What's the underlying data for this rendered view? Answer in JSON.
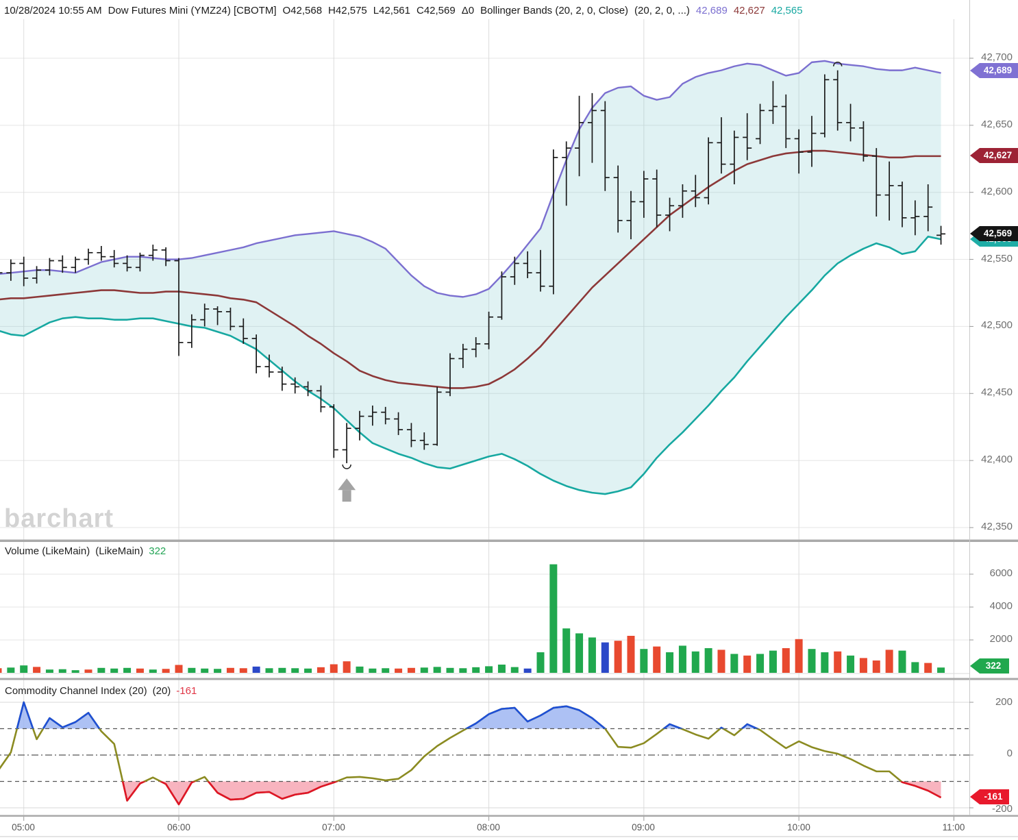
{
  "header": {
    "datetime": "10/28/2024 10:55 AM",
    "symbol": "Dow Futures Mini (YMZ24) [CBOTM]",
    "open": "O42,568",
    "high": "H42,575",
    "low": "L42,561",
    "close": "C42,569",
    "change": "Δ0",
    "study_label": "Bollinger Bands (20, 2, 0, Close)",
    "study_params": "(20, 2, 0, ...)",
    "bb_upper_value": "42,689",
    "bb_middle_value": "42,627",
    "bb_lower_value": "42,565"
  },
  "watermark": "barchart",
  "price_axis": {
    "labels": [
      "42,700",
      "42,650",
      "42,600",
      "42,550",
      "42,500",
      "42,450",
      "42,400",
      "42,350"
    ],
    "badge_upper": "42,689",
    "badge_middle": "42,627",
    "badge_last": "42,569",
    "badge_lower": "42,565"
  },
  "volume_panel": {
    "title": "Volume (LikeMain)",
    "title2": "(LikeMain)",
    "value": "322",
    "axis": [
      "6000",
      "4000",
      "2000"
    ],
    "badge": "322"
  },
  "cci_panel": {
    "title": "Commodity Channel Index (20)",
    "title2": "(20)",
    "value": "-161",
    "axis": [
      "200",
      "0",
      "-200"
    ],
    "badge": "-161"
  },
  "time_axis": [
    "05:00",
    "06:00",
    "07:00",
    "08:00",
    "09:00",
    "10:00",
    "11:00"
  ],
  "colors": {
    "bb_upper": "#7b6fd0",
    "bb_middle": "#8c3838",
    "bb_lower": "#17a8a1",
    "band_fill": "#8ed1d5",
    "volume_up": "#21a84e",
    "volume_down": "#e8492f",
    "volume_neutral": "#2b48c8",
    "cci_line": "#8b8b21",
    "cci_overbought_line": "#1d4fd7",
    "cci_oversold_line": "#e01427",
    "cci_overbought_fill": "#9fb6f2",
    "cci_oversold_fill": "#f7acb8",
    "badge_black": "#151515",
    "badge_purple": "#7f71d3",
    "badge_maroon": "#9d2235",
    "badge_teal": "#1fada6",
    "badge_green": "#21a84e",
    "badge_red": "#e8192c"
  },
  "chart_data": [
    {
      "type": "ohlc",
      "name": "Dow Futures Mini (YMZ24) 5-minute bars with Bollinger Bands (20,2)",
      "ylim": [
        42350,
        42700
      ],
      "yticks": [
        42700,
        42650,
        42600,
        42550,
        42500,
        42450,
        42400,
        42350
      ],
      "x": [
        "04:50",
        "04:55",
        "05:00",
        "05:05",
        "05:10",
        "05:15",
        "05:20",
        "05:25",
        "05:30",
        "05:35",
        "05:40",
        "05:45",
        "05:50",
        "05:55",
        "06:00",
        "06:05",
        "06:10",
        "06:15",
        "06:20",
        "06:25",
        "06:30",
        "06:35",
        "06:40",
        "06:45",
        "06:50",
        "06:55",
        "07:00",
        "07:05",
        "07:10",
        "07:15",
        "07:20",
        "07:25",
        "07:30",
        "07:35",
        "07:40",
        "07:45",
        "07:50",
        "07:55",
        "08:00",
        "08:05",
        "08:10",
        "08:15",
        "08:20",
        "08:25",
        "08:30",
        "08:35",
        "08:40",
        "08:45",
        "08:50",
        "08:55",
        "09:00",
        "09:05",
        "09:10",
        "09:15",
        "09:20",
        "09:25",
        "09:30",
        "09:35",
        "09:40",
        "09:45",
        "09:50",
        "09:55",
        "10:00",
        "10:05",
        "10:10",
        "10:15",
        "10:20",
        "10:25",
        "10:30",
        "10:35",
        "10:40",
        "10:45",
        "10:50",
        "10:55"
      ],
      "open": [
        42536,
        42540,
        42547,
        42536,
        42542,
        42549,
        42544,
        42550,
        42555,
        42552,
        42547,
        42544,
        42553,
        42557,
        42549,
        42488,
        42505,
        42513,
        42511,
        42500,
        42491,
        42470,
        42466,
        42457,
        42455,
        42452,
        42440,
        42408,
        42424,
        42433,
        42436,
        42431,
        42423,
        42415,
        42412,
        42451,
        42476,
        42483,
        42487,
        42507,
        42537,
        42547,
        42540,
        42530,
        42626,
        42633,
        42652,
        42661,
        42611,
        42579,
        42593,
        42610,
        42583,
        42590,
        42601,
        42596,
        42637,
        42621,
        42641,
        42640,
        42661,
        42664,
        42640,
        42630,
        42644,
        42684,
        42652,
        42648,
        42627,
        42598,
        42605,
        42581,
        42582,
        42568
      ],
      "high": [
        42544,
        42550,
        42552,
        42545,
        42551,
        42553,
        42552,
        42558,
        42560,
        42557,
        42553,
        42555,
        42561,
        42559,
        42551,
        42509,
        42517,
        42515,
        42514,
        42506,
        42494,
        42479,
        42470,
        42462,
        42459,
        42456,
        42442,
        42428,
        42437,
        42441,
        42440,
        42436,
        42428,
        42421,
        42455,
        42480,
        42487,
        42492,
        42511,
        42541,
        42552,
        42556,
        42557,
        42632,
        42638,
        42672,
        42674,
        42668,
        42620,
        42601,
        42616,
        42617,
        42596,
        42606,
        42613,
        42641,
        42656,
        42646,
        42659,
        42666,
        42683,
        42673,
        42647,
        42657,
        42688,
        42691,
        42666,
        42653,
        42633,
        42623,
        42608,
        42594,
        42606,
        42575
      ],
      "low": [
        42528,
        42534,
        42530,
        42532,
        42538,
        42540,
        42540,
        42546,
        42549,
        42544,
        42541,
        42541,
        42549,
        42545,
        42478,
        42484,
        42500,
        42501,
        42497,
        42487,
        42465,
        42462,
        42452,
        42450,
        42448,
        42436,
        42402,
        42398,
        42415,
        42426,
        42427,
        42419,
        42410,
        42408,
        42411,
        42448,
        42469,
        42477,
        42483,
        42505,
        42531,
        42536,
        42526,
        42524,
        42590,
        42612,
        42622,
        42601,
        42570,
        42565,
        42581,
        42574,
        42571,
        42581,
        42589,
        42591,
        42614,
        42606,
        42624,
        42636,
        42651,
        42633,
        42614,
        42619,
        42641,
        42646,
        42638,
        42623,
        42582,
        42579,
        42574,
        42568,
        42571,
        42561
      ],
      "close": [
        42540,
        42547,
        42536,
        42542,
        42549,
        42544,
        42550,
        42555,
        42552,
        42547,
        42544,
        42553,
        42557,
        42549,
        42488,
        42505,
        42513,
        42511,
        42500,
        42491,
        42470,
        42466,
        42457,
        42455,
        42452,
        42440,
        42408,
        42424,
        42433,
        42436,
        42431,
        42423,
        42415,
        42412,
        42451,
        42476,
        42483,
        42487,
        42507,
        42537,
        42547,
        42540,
        42530,
        42626,
        42633,
        42652,
        42661,
        42611,
        42579,
        42593,
        42610,
        42583,
        42590,
        42601,
        42596,
        42637,
        42621,
        42641,
        42633,
        42661,
        42664,
        42640,
        42630,
        42644,
        42684,
        42652,
        42648,
        42627,
        42598,
        42605,
        42581,
        42582,
        42589,
        42569
      ],
      "series": [
        {
          "name": "Bollinger Upper (20,2)",
          "color": "#7b6fd0",
          "values": [
            42539,
            42540,
            42541,
            42542,
            42542,
            42541,
            42540,
            42544,
            42548,
            42550,
            42552,
            42552,
            42551,
            42550,
            42550,
            42551,
            42553,
            42555,
            42557,
            42559,
            42562,
            42564,
            42566,
            42568,
            42569,
            42570,
            42571,
            42569,
            42567,
            42563,
            42558,
            42548,
            42538,
            42530,
            42525,
            42523,
            42522,
            42524,
            42528,
            42538,
            42549,
            42561,
            42573,
            42599,
            42624,
            42647,
            42663,
            42674,
            42678,
            42679,
            42672,
            42669,
            42671,
            42681,
            42686,
            42689,
            42691,
            42694,
            42696,
            42695,
            42691,
            42687,
            42689,
            42697,
            42698,
            42696,
            42695,
            42694,
            42692,
            42691,
            42691,
            42693,
            42691,
            42689
          ]
        },
        {
          "name": "Bollinger Middle (20)",
          "color": "#8c3838",
          "values": [
            42520,
            42521,
            42521,
            42522,
            42523,
            42524,
            42525,
            42526,
            42527,
            42527,
            42526,
            42525,
            42525,
            42526,
            42526,
            42525,
            42524,
            42523,
            42521,
            42520,
            42518,
            42512,
            42506,
            42500,
            42493,
            42487,
            42480,
            42474,
            42467,
            42463,
            42460,
            42458,
            42457,
            42456,
            42455,
            42454,
            42454,
            42455,
            42457,
            42462,
            42468,
            42476,
            42485,
            42496,
            42507,
            42518,
            42529,
            42538,
            42547,
            42556,
            42565,
            42574,
            42583,
            42590,
            42597,
            42604,
            42610,
            42616,
            42621,
            42624,
            42627,
            42629,
            42630,
            42631,
            42631,
            42630,
            42629,
            42628,
            42627,
            42626,
            42626,
            42627,
            42627,
            42627
          ]
        },
        {
          "name": "Bollinger Lower (20,2)",
          "color": "#17a8a1",
          "values": [
            42497,
            42494,
            42493,
            42498,
            42503,
            42506,
            42507,
            42506,
            42506,
            42505,
            42505,
            42506,
            42506,
            42504,
            42502,
            42500,
            42499,
            42496,
            42493,
            42488,
            42483,
            42475,
            42467,
            42459,
            42452,
            42446,
            42439,
            42430,
            42421,
            42413,
            42409,
            42405,
            42402,
            42398,
            42395,
            42394,
            42397,
            42400,
            42403,
            42405,
            42401,
            42396,
            42390,
            42385,
            42381,
            42378,
            42376,
            42375,
            42377,
            42380,
            42390,
            42402,
            42412,
            42421,
            42431,
            42441,
            42452,
            42462,
            42474,
            42485,
            42496,
            42507,
            42517,
            42527,
            42538,
            42547,
            42553,
            42558,
            42562,
            42559,
            42554,
            42556,
            42567,
            42565
          ]
        }
      ],
      "last_values": {
        "upper": 42689,
        "middle": 42627,
        "lower": 42565,
        "close": 42569
      },
      "annotations": [
        {
          "type": "semicircle-below",
          "time": "07:05",
          "price": 42397
        },
        {
          "type": "arrow-up",
          "time": "07:05",
          "price": 42378
        },
        {
          "type": "semicircle-above",
          "time": "10:15",
          "price": 42694
        }
      ]
    },
    {
      "type": "bar",
      "name": "Volume (LikeMain)",
      "ylim": [
        0,
        6700
      ],
      "yticks": [
        2000,
        4000,
        6000
      ],
      "last": 322,
      "color_map": {
        "g": "#21a84e",
        "r": "#e8492f",
        "b": "#2b48c8"
      },
      "values": [
        280,
        320,
        450,
        360,
        200,
        220,
        160,
        200,
        300,
        260,
        300,
        260,
        200,
        240,
        480,
        300,
        260,
        240,
        300,
        280,
        380,
        280,
        300,
        280,
        260,
        340,
        520,
        700,
        380,
        260,
        280,
        260,
        300,
        320,
        360,
        300,
        280,
        340,
        400,
        500,
        350,
        260,
        1250,
        6600,
        2700,
        2400,
        2150,
        1850,
        1950,
        2250,
        1450,
        1600,
        1250,
        1650,
        1300,
        1500,
        1400,
        1150,
        1050,
        1150,
        1350,
        1500,
        2050,
        1450,
        1250,
        1300,
        1050,
        900,
        750,
        1400,
        1350,
        650,
        600,
        322
      ],
      "colors": [
        "r",
        "g",
        "g",
        "r",
        "g",
        "g",
        "g",
        "r",
        "g",
        "g",
        "g",
        "r",
        "g",
        "r",
        "r",
        "g",
        "g",
        "g",
        "r",
        "r",
        "b",
        "g",
        "g",
        "g",
        "g",
        "r",
        "r",
        "r",
        "g",
        "g",
        "g",
        "r",
        "r",
        "g",
        "g",
        "g",
        "g",
        "g",
        "g",
        "g",
        "g",
        "b",
        "g",
        "g",
        "g",
        "g",
        "g",
        "b",
        "r",
        "r",
        "g",
        "r",
        "g",
        "g",
        "g",
        "g",
        "r",
        "g",
        "r",
        "g",
        "g",
        "r",
        "r",
        "g",
        "g",
        "r",
        "g",
        "r",
        "r",
        "r",
        "g",
        "g",
        "r",
        "g"
      ]
    },
    {
      "type": "line",
      "name": "Commodity Channel Index (20)",
      "ylim": [
        -200,
        200
      ],
      "yticks": [
        200,
        0,
        -200
      ],
      "levels": {
        "overbought": 100,
        "zero": 0,
        "oversold": -100
      },
      "last": -161,
      "values": [
        -60,
        10,
        200,
        60,
        140,
        105,
        125,
        160,
        90,
        42,
        -173,
        -108,
        -85,
        -110,
        -187,
        -104,
        -83,
        -143,
        -169,
        -166,
        -143,
        -140,
        -166,
        -150,
        -143,
        -120,
        -104,
        -85,
        -83,
        -88,
        -96,
        -90,
        -57,
        -5,
        34,
        65,
        93,
        120,
        155,
        175,
        179,
        127,
        150,
        179,
        185,
        170,
        140,
        100,
        31,
        28,
        45,
        80,
        117,
        98,
        78,
        62,
        104,
        75,
        117,
        95,
        60,
        26,
        52,
        30,
        15,
        5,
        -15,
        -40,
        -62,
        -62,
        -103,
        -117,
        -135,
        -161
      ]
    }
  ]
}
